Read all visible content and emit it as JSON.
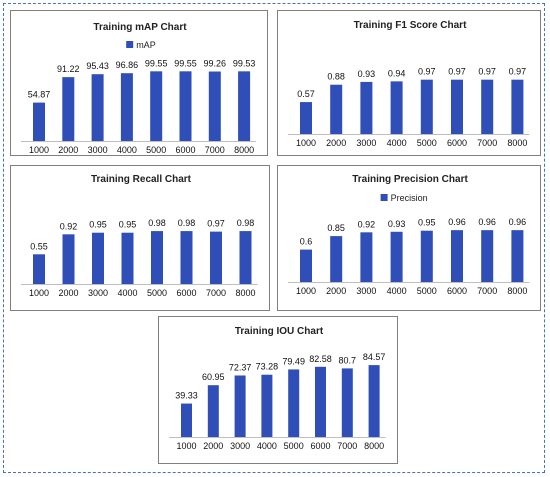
{
  "chart_data": [
    {
      "type": "bar",
      "title": "Training mAP Chart",
      "legend": "mAP",
      "legend_position": "top",
      "categories": [
        "1000",
        "2000",
        "3000",
        "4000",
        "5000",
        "6000",
        "7000",
        "8000"
      ],
      "series": [
        {
          "name": "mAP",
          "values": [
            54.87,
            91.22,
            95.43,
            96.86,
            99.55,
            99.55,
            99.26,
            99.53
          ]
        }
      ],
      "value_labels": [
        "54.87",
        "91.22",
        "95.43",
        "96.86",
        "99.55",
        "99.55",
        "99.26",
        "99.53"
      ],
      "ylim": [
        0,
        100
      ],
      "color": "#2f4eb8"
    },
    {
      "type": "bar",
      "title": "Training F1 Score Chart",
      "categories": [
        "1000",
        "2000",
        "3000",
        "4000",
        "5000",
        "6000",
        "7000",
        "8000"
      ],
      "series": [
        {
          "values": [
            0.57,
            0.88,
            0.93,
            0.94,
            0.97,
            0.97,
            0.97,
            0.97
          ]
        }
      ],
      "value_labels": [
        "0.57",
        "0.88",
        "0.93",
        "0.94",
        "0.97",
        "0.97",
        "0.97",
        "0.97"
      ],
      "ylim": [
        0,
        1
      ],
      "color": "#2f4eb8"
    },
    {
      "type": "bar",
      "title": "Training Recall Chart",
      "categories": [
        "1000",
        "2000",
        "3000",
        "4000",
        "5000",
        "6000",
        "7000",
        "8000"
      ],
      "series": [
        {
          "values": [
            0.55,
            0.92,
            0.95,
            0.95,
            0.98,
            0.98,
            0.97,
            0.98
          ]
        }
      ],
      "value_labels": [
        "0.55",
        "0.92",
        "0.95",
        "0.95",
        "0.98",
        "0.98",
        "0.97",
        "0.98"
      ],
      "ylim": [
        0,
        1
      ],
      "color": "#2f4eb8"
    },
    {
      "type": "bar",
      "title": "Training Precision Chart",
      "legend": "Precision",
      "legend_position": "top",
      "categories": [
        "1000",
        "2000",
        "3000",
        "4000",
        "5000",
        "6000",
        "7000",
        "8000"
      ],
      "series": [
        {
          "name": "Precision",
          "values": [
            0.6,
            0.85,
            0.92,
            0.93,
            0.95,
            0.96,
            0.96,
            0.96
          ]
        }
      ],
      "value_labels": [
        "0.6",
        "0.85",
        "0.92",
        "0.93",
        "0.95",
        "0.96",
        "0.96",
        "0.96"
      ],
      "ylim": [
        0,
        1
      ],
      "color": "#2f4eb8"
    },
    {
      "type": "bar",
      "title": "Training IOU Chart",
      "categories": [
        "1000",
        "2000",
        "3000",
        "4000",
        "5000",
        "6000",
        "7000",
        "8000"
      ],
      "series": [
        {
          "values": [
            39.33,
            60.95,
            72.37,
            73.28,
            79.49,
            82.58,
            80.7,
            84.57
          ]
        }
      ],
      "value_labels": [
        "39.33",
        "60.95",
        "72.37",
        "73.28",
        "79.49",
        "82.58",
        "80.7",
        "84.57"
      ],
      "ylim": [
        0,
        100
      ],
      "color": "#2f4eb8"
    }
  ]
}
